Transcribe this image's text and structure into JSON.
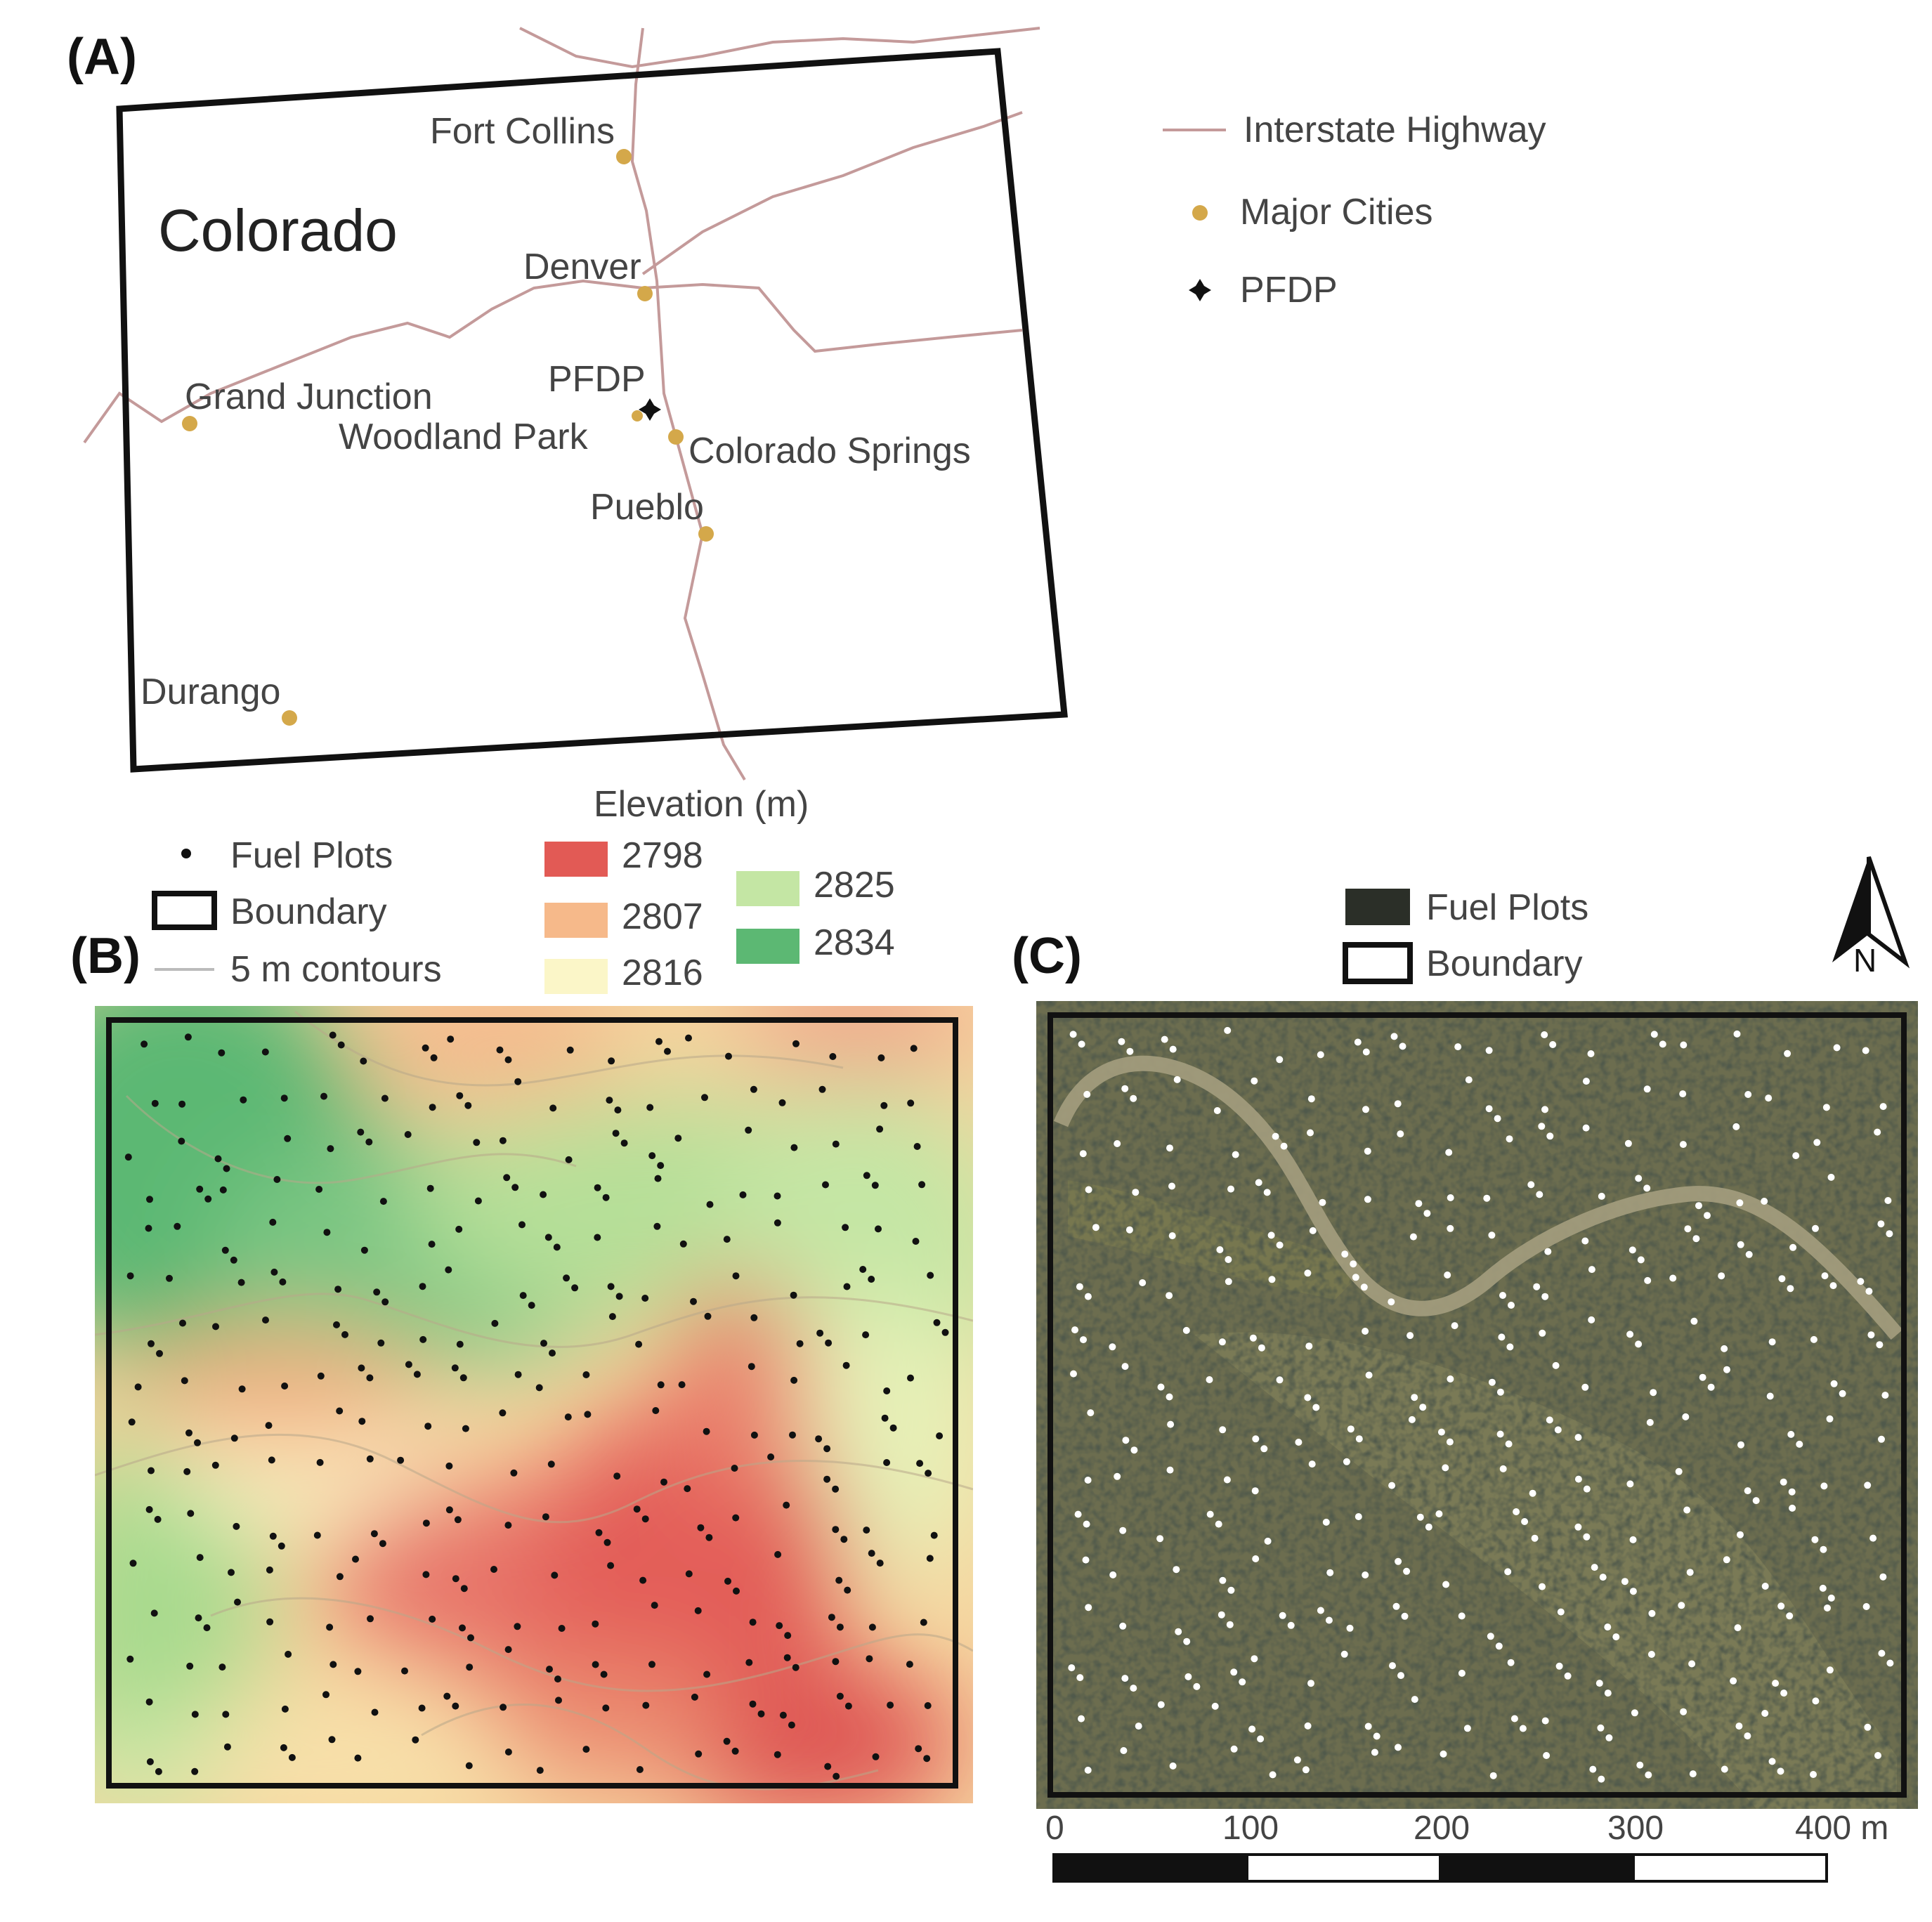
{
  "panel_a": {
    "label": "(A)",
    "state_label": "Colorado",
    "cities": {
      "fort_collins": "Fort Collins",
      "denver": "Denver",
      "grand_junction": "Grand Junction",
      "woodland_park": "Woodland Park",
      "colorado_springs": "Colorado Springs",
      "pueblo": "Pueblo",
      "durango": "Durango",
      "pfdp": "PFDP"
    },
    "legend": {
      "highway": "Interstate Highway",
      "cities": "Major Cities",
      "pfdp": "PFDP"
    },
    "colors": {
      "highway": "#b88a8a",
      "city": "#d4a84a",
      "border": "#111111"
    }
  },
  "panel_b": {
    "label": "(B)",
    "legend": {
      "fuel_plots": "Fuel Plots",
      "boundary": "Boundary",
      "contours": "5 m contours"
    },
    "elevation_title": "Elevation (m)",
    "elevation_classes": [
      {
        "value": "2798",
        "color": "#e25a55"
      },
      {
        "value": "2807",
        "color": "#f6b98a"
      },
      {
        "value": "2816",
        "color": "#fbf6c8"
      },
      {
        "value": "2825",
        "color": "#c4e6a4"
      },
      {
        "value": "2834",
        "color": "#5cb873"
      }
    ]
  },
  "panel_c": {
    "label": "(C)",
    "legend": {
      "fuel_plots": "Fuel Plots",
      "boundary": "Boundary"
    },
    "north_label": "N",
    "scale_bar": [
      "0",
      "100",
      "200",
      "300",
      "400 m"
    ]
  }
}
